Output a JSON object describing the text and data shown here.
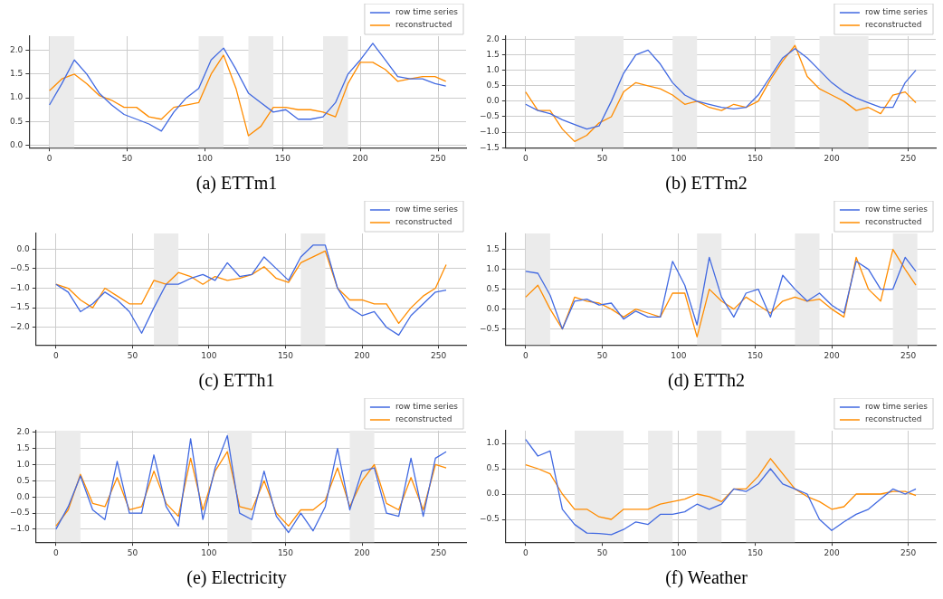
{
  "chart_data": [
    {
      "type": "line",
      "title": "(a) ETTm1",
      "x": [
        0,
        8,
        16,
        24,
        32,
        40,
        48,
        56,
        64,
        72,
        80,
        88,
        96,
        104,
        112,
        120,
        128,
        136,
        144,
        152,
        160,
        168,
        176,
        184,
        192,
        200,
        208,
        216,
        224,
        232,
        240,
        248,
        255
      ],
      "xlim": [
        -13,
        268
      ],
      "xticks": [
        0,
        50,
        100,
        150,
        200,
        250
      ],
      "ylim": [
        -0.05,
        2.3
      ],
      "yticks": [
        {
          "value": 0,
          "label": "0.0"
        },
        {
          "value": 0.5,
          "label": "0.5"
        },
        {
          "value": 1,
          "label": "1.0"
        },
        {
          "value": 1.5,
          "label": "1.5"
        },
        {
          "value": 2,
          "label": "2.0"
        }
      ],
      "grid": true,
      "legend": "top right",
      "bands": [
        {
          "axis": "x",
          "from": 0,
          "to": 16,
          "color": "#ebebeb"
        },
        {
          "axis": "x",
          "from": 96,
          "to": 112,
          "color": "#ebebeb"
        },
        {
          "axis": "x",
          "from": 128,
          "to": 144,
          "color": "#ebebeb"
        },
        {
          "axis": "x",
          "from": 176,
          "to": 192,
          "color": "#ebebeb"
        }
      ],
      "series": [
        {
          "name": "row time series",
          "color": "#4169e1",
          "values": [
            0.85,
            1.3,
            1.8,
            1.5,
            1.1,
            0.85,
            0.65,
            0.55,
            0.45,
            0.3,
            0.7,
            1.0,
            1.2,
            1.8,
            2.05,
            1.6,
            1.1,
            0.9,
            0.7,
            0.75,
            0.55,
            0.55,
            0.6,
            0.9,
            1.5,
            1.8,
            2.15,
            1.8,
            1.45,
            1.4,
            1.4,
            1.3,
            1.25
          ]
        },
        {
          "name": "reconstructed",
          "color": "#ff8c00",
          "values": [
            1.15,
            1.4,
            1.5,
            1.3,
            1.05,
            0.95,
            0.8,
            0.8,
            0.6,
            0.55,
            0.8,
            0.85,
            0.9,
            1.5,
            1.9,
            1.2,
            0.2,
            0.4,
            0.8,
            0.8,
            0.75,
            0.75,
            0.7,
            0.6,
            1.3,
            1.75,
            1.75,
            1.6,
            1.35,
            1.4,
            1.45,
            1.45,
            1.35
          ]
        }
      ]
    },
    {
      "type": "line",
      "title": "(b) ETTm2",
      "x": [
        0,
        8,
        16,
        24,
        32,
        40,
        48,
        56,
        64,
        72,
        80,
        88,
        96,
        104,
        112,
        120,
        128,
        136,
        144,
        152,
        160,
        168,
        176,
        184,
        192,
        200,
        208,
        216,
        224,
        232,
        240,
        248,
        255
      ],
      "xlim": [
        -13,
        268
      ],
      "xticks": [
        0,
        50,
        100,
        150,
        200,
        250
      ],
      "ylim": [
        -1.5,
        2.1
      ],
      "yticks": [
        {
          "value": -1.5,
          "label": "−1.5"
        },
        {
          "value": -1,
          "label": "−1.0"
        },
        {
          "value": -0.5,
          "label": "−0.5"
        },
        {
          "value": 0,
          "label": "0.0"
        },
        {
          "value": 0.5,
          "label": "0.5"
        },
        {
          "value": 1,
          "label": "1.0"
        },
        {
          "value": 1.5,
          "label": "1.5"
        },
        {
          "value": 2,
          "label": "2.0"
        }
      ],
      "grid": true,
      "legend": "top right",
      "bands": [
        {
          "axis": "x",
          "from": 32,
          "to": 64,
          "color": "#ebebeb"
        },
        {
          "axis": "x",
          "from": 96,
          "to": 112,
          "color": "#ebebeb"
        },
        {
          "axis": "x",
          "from": 160,
          "to": 176,
          "color": "#ebebeb"
        },
        {
          "axis": "x",
          "from": 192,
          "to": 224,
          "color": "#ebebeb"
        }
      ],
      "series": [
        {
          "name": "row time series",
          "color": "#4169e1",
          "values": [
            -0.1,
            -0.3,
            -0.4,
            -0.6,
            -0.75,
            -0.9,
            -0.8,
            0.0,
            0.9,
            1.5,
            1.65,
            1.2,
            0.6,
            0.2,
            0.0,
            -0.1,
            -0.2,
            -0.25,
            -0.2,
            0.2,
            0.8,
            1.4,
            1.7,
            1.4,
            1.0,
            0.6,
            0.3,
            0.1,
            -0.05,
            -0.2,
            -0.2,
            0.6,
            1.0
          ]
        },
        {
          "name": "reconstructed",
          "color": "#ff8c00",
          "values": [
            0.3,
            -0.3,
            -0.3,
            -0.9,
            -1.3,
            -1.1,
            -0.7,
            -0.5,
            0.3,
            0.6,
            0.5,
            0.4,
            0.2,
            -0.1,
            0.0,
            -0.2,
            -0.3,
            -0.1,
            -0.2,
            0.0,
            0.7,
            1.3,
            1.8,
            0.8,
            0.4,
            0.2,
            0.0,
            -0.3,
            -0.2,
            -0.4,
            0.2,
            0.3,
            -0.05
          ]
        }
      ]
    },
    {
      "type": "line",
      "title": "(c) ETTh1",
      "x": [
        0,
        8,
        16,
        24,
        32,
        40,
        48,
        56,
        64,
        72,
        80,
        88,
        96,
        104,
        112,
        120,
        128,
        136,
        144,
        152,
        160,
        168,
        176,
        184,
        192,
        200,
        208,
        216,
        224,
        232,
        240,
        248,
        255
      ],
      "xlim": [
        -13,
        268
      ],
      "xticks": [
        0,
        50,
        100,
        150,
        200,
        250
      ],
      "ylim": [
        -2.45,
        0.4
      ],
      "yticks": [
        {
          "value": -2,
          "label": "−2.0"
        },
        {
          "value": -1.5,
          "label": "−1.5"
        },
        {
          "value": -1,
          "label": "−1.0"
        },
        {
          "value": -0.5,
          "label": "−0.5"
        },
        {
          "value": 0,
          "label": "0.0"
        }
      ],
      "grid": true,
      "legend": "top right",
      "bands": [
        {
          "axis": "x",
          "from": 64,
          "to": 80,
          "color": "#ebebeb"
        },
        {
          "axis": "x",
          "from": 160,
          "to": 176,
          "color": "#ebebeb"
        }
      ],
      "series": [
        {
          "name": "row time series",
          "color": "#4169e1",
          "values": [
            -0.9,
            -1.1,
            -1.6,
            -1.4,
            -1.1,
            -1.3,
            -1.6,
            -2.15,
            -1.5,
            -0.9,
            -0.9,
            -0.75,
            -0.65,
            -0.8,
            -0.35,
            -0.7,
            -0.65,
            -0.2,
            -0.5,
            -0.8,
            -0.2,
            0.1,
            0.1,
            -1.0,
            -1.5,
            -1.7,
            -1.6,
            -2.0,
            -2.2,
            -1.7,
            -1.4,
            -1.1,
            -1.05
          ]
        },
        {
          "name": "reconstructed",
          "color": "#ff8c00",
          "values": [
            -0.9,
            -1.0,
            -1.3,
            -1.5,
            -1.0,
            -1.2,
            -1.4,
            -1.4,
            -0.8,
            -0.9,
            -0.6,
            -0.7,
            -0.9,
            -0.7,
            -0.8,
            -0.75,
            -0.65,
            -0.45,
            -0.75,
            -0.85,
            -0.35,
            -0.2,
            -0.05,
            -1.0,
            -1.3,
            -1.3,
            -1.4,
            -1.4,
            -1.9,
            -1.5,
            -1.2,
            -1.0,
            -0.4
          ]
        }
      ]
    },
    {
      "type": "line",
      "title": "(d) ETTh2",
      "x": [
        0,
        8,
        16,
        24,
        32,
        40,
        48,
        56,
        64,
        72,
        80,
        88,
        96,
        104,
        112,
        120,
        128,
        136,
        144,
        152,
        160,
        168,
        176,
        184,
        192,
        200,
        208,
        216,
        224,
        232,
        240,
        248,
        255
      ],
      "xlim": [
        -13,
        268
      ],
      "xticks": [
        0,
        50,
        100,
        150,
        200,
        250
      ],
      "ylim": [
        -0.9,
        1.9
      ],
      "yticks": [
        {
          "value": -0.5,
          "label": "−0.5"
        },
        {
          "value": 0,
          "label": "0.0"
        },
        {
          "value": 0.5,
          "label": "0.5"
        },
        {
          "value": 1,
          "label": "1.0"
        },
        {
          "value": 1.5,
          "label": "1.5"
        }
      ],
      "grid": true,
      "legend": "top right",
      "bands": [
        {
          "axis": "x",
          "from": 0,
          "to": 16,
          "color": "#ebebeb"
        },
        {
          "axis": "x",
          "from": 112,
          "to": 128,
          "color": "#ebebeb"
        },
        {
          "axis": "x",
          "from": 176,
          "to": 192,
          "color": "#ebebeb"
        },
        {
          "axis": "x",
          "from": 240,
          "to": 256,
          "color": "#ebebeb"
        }
      ],
      "series": [
        {
          "name": "row time series",
          "color": "#4169e1",
          "values": [
            0.95,
            0.9,
            0.35,
            -0.5,
            0.2,
            0.25,
            0.1,
            0.15,
            -0.25,
            -0.05,
            -0.2,
            -0.2,
            1.2,
            0.6,
            -0.4,
            1.3,
            0.3,
            -0.2,
            0.4,
            0.5,
            -0.2,
            0.85,
            0.5,
            0.2,
            0.4,
            0.1,
            -0.1,
            1.2,
            1.0,
            0.5,
            0.5,
            1.3,
            0.95
          ]
        },
        {
          "name": "reconstructed",
          "color": "#ff8c00",
          "values": [
            0.3,
            0.6,
            0.0,
            -0.5,
            0.3,
            0.2,
            0.15,
            0.0,
            -0.2,
            0.0,
            -0.1,
            -0.2,
            0.4,
            0.4,
            -0.7,
            0.5,
            0.2,
            0.0,
            0.3,
            0.1,
            -0.1,
            0.2,
            0.3,
            0.2,
            0.25,
            0.0,
            -0.2,
            1.3,
            0.5,
            0.2,
            1.5,
            1.0,
            0.6
          ]
        }
      ]
    },
    {
      "type": "line",
      "title": "(e) Electricity",
      "x": [
        0,
        8,
        16,
        24,
        32,
        40,
        48,
        56,
        64,
        72,
        80,
        88,
        96,
        104,
        112,
        120,
        128,
        136,
        144,
        152,
        160,
        168,
        176,
        184,
        192,
        200,
        208,
        216,
        224,
        232,
        240,
        248,
        255
      ],
      "xlim": [
        -13,
        268
      ],
      "xticks": [
        0,
        50,
        100,
        150,
        200,
        250
      ],
      "ylim": [
        -1.4,
        2.05
      ],
      "yticks": [
        {
          "value": -1,
          "label": "−1.0"
        },
        {
          "value": -0.5,
          "label": "−0.5"
        },
        {
          "value": 0,
          "label": "0.0"
        },
        {
          "value": 0.5,
          "label": "0.5"
        },
        {
          "value": 1,
          "label": "1.0"
        },
        {
          "value": 1.5,
          "label": "1.5"
        },
        {
          "value": 2,
          "label": "2.0"
        }
      ],
      "grid": true,
      "legend": "top right",
      "bands": [
        {
          "axis": "x",
          "from": 0,
          "to": 16,
          "color": "#ebebeb"
        },
        {
          "axis": "x",
          "from": 112,
          "to": 128,
          "color": "#ebebeb"
        },
        {
          "axis": "x",
          "from": 192,
          "to": 208,
          "color": "#ebebeb"
        }
      ],
      "series": [
        {
          "name": "row time series",
          "color": "#4169e1",
          "values": [
            -1.0,
            -0.3,
            0.65,
            -0.4,
            -0.7,
            1.1,
            -0.5,
            -0.5,
            1.3,
            -0.3,
            -0.9,
            1.8,
            -0.7,
            0.9,
            1.9,
            -0.5,
            -0.7,
            0.8,
            -0.6,
            -1.1,
            -0.5,
            -1.05,
            -0.3,
            1.5,
            -0.4,
            0.8,
            0.9,
            -0.5,
            -0.6,
            1.2,
            -0.6,
            1.2,
            1.4
          ]
        },
        {
          "name": "reconstructed",
          "color": "#ff8c00",
          "values": [
            -0.9,
            -0.4,
            0.7,
            -0.2,
            -0.3,
            0.6,
            -0.4,
            -0.3,
            0.8,
            -0.2,
            -0.6,
            1.2,
            -0.4,
            0.8,
            1.4,
            -0.3,
            -0.4,
            0.5,
            -0.5,
            -0.9,
            -0.4,
            -0.4,
            -0.1,
            0.9,
            -0.3,
            0.5,
            1.0,
            -0.2,
            -0.4,
            0.6,
            -0.4,
            1.0,
            0.9
          ]
        }
      ]
    },
    {
      "type": "line",
      "title": "(f) Weather",
      "x": [
        0,
        8,
        16,
        24,
        32,
        40,
        48,
        56,
        64,
        72,
        80,
        88,
        96,
        104,
        112,
        120,
        128,
        136,
        144,
        152,
        160,
        168,
        176,
        184,
        192,
        200,
        208,
        216,
        224,
        232,
        240,
        248,
        255
      ],
      "xlim": [
        -13,
        268
      ],
      "xticks": [
        0,
        50,
        100,
        150,
        200,
        250
      ],
      "ylim": [
        -0.95,
        1.25
      ],
      "yticks": [
        {
          "value": -0.5,
          "label": "−0.5"
        },
        {
          "value": 0,
          "label": "0.0"
        },
        {
          "value": 0.5,
          "label": "0.5"
        },
        {
          "value": 1,
          "label": "1.0"
        }
      ],
      "grid": true,
      "legend": "top right",
      "bands": [
        {
          "axis": "x",
          "from": 32,
          "to": 64,
          "color": "#ebebeb"
        },
        {
          "axis": "x",
          "from": 80,
          "to": 96,
          "color": "#ebebeb"
        },
        {
          "axis": "x",
          "from": 112,
          "to": 128,
          "color": "#ebebeb"
        },
        {
          "axis": "x",
          "from": 144,
          "to": 176,
          "color": "#ebebeb"
        }
      ],
      "series": [
        {
          "name": "row time series",
          "color": "#4169e1",
          "values": [
            1.08,
            0.75,
            0.85,
            -0.3,
            -0.6,
            -0.77,
            -0.78,
            -0.8,
            -0.7,
            -0.55,
            -0.6,
            -0.4,
            -0.4,
            -0.35,
            -0.2,
            -0.3,
            -0.2,
            0.1,
            0.05,
            0.2,
            0.5,
            0.2,
            0.1,
            0.0,
            -0.5,
            -0.72,
            -0.55,
            -0.4,
            -0.3,
            -0.1,
            0.1,
            0.0,
            0.1
          ]
        },
        {
          "name": "reconstructed",
          "color": "#ff8c00",
          "values": [
            0.58,
            0.5,
            0.4,
            0.0,
            -0.3,
            -0.3,
            -0.45,
            -0.5,
            -0.3,
            -0.3,
            -0.3,
            -0.2,
            -0.15,
            -0.1,
            0.0,
            -0.05,
            -0.15,
            0.1,
            0.1,
            0.35,
            0.7,
            0.4,
            0.1,
            -0.05,
            -0.15,
            -0.3,
            -0.25,
            0.0,
            0.0,
            0.0,
            0.05,
            0.05,
            -0.03
          ]
        }
      ]
    }
  ]
}
